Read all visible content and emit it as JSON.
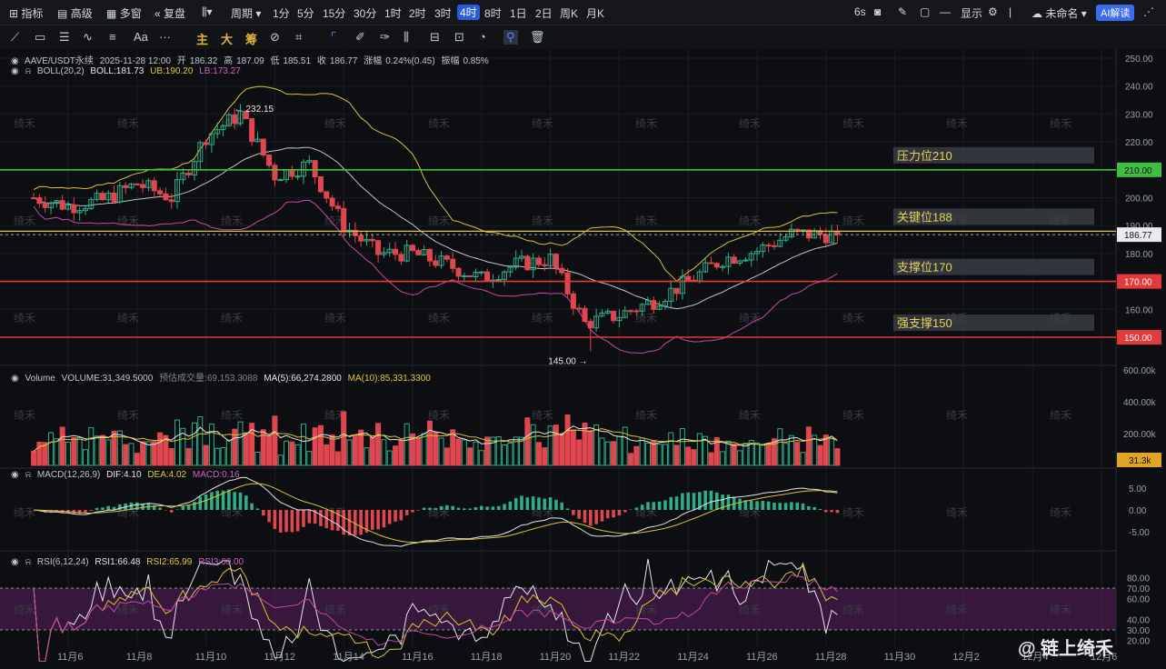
{
  "toolbar": {
    "items": [
      "指标",
      "高级",
      "多窗",
      "复盘",
      "周期",
      "1分",
      "5分",
      "15分",
      "30分",
      "1时",
      "2时",
      "3时",
      "4时",
      "8时",
      "1日",
      "2日",
      "周K",
      "月K"
    ],
    "active_index": 12,
    "right_items": [
      "6s",
      "显示",
      "未命名"
    ],
    "ai_button": "AI解读"
  },
  "drawbar": {
    "labels": [
      "主",
      "大",
      "筹"
    ],
    "text_tool": "Aa"
  },
  "main_legend": {
    "symbol": "AAVE/USDT永续",
    "datetime": "2025-11-28 12:00",
    "open_label": "开",
    "open": "186.32",
    "high_label": "高",
    "high": "187.09",
    "low_label": "低",
    "low": "185.51",
    "close_label": "收",
    "close": "186.77",
    "chg_label": "涨幅",
    "chg": "0.24%(0.45)",
    "amp_label": "振幅",
    "amp": "0.85%"
  },
  "boll_legend": {
    "name": "BOLL(20,2)",
    "mid": "BOLL:181.73",
    "ub": "UB:190.20",
    "lb": "LB:173.27"
  },
  "volume_legend": {
    "name": "Volume",
    "vol": "VOLUME:31,349.5000",
    "est": "预估成交量:69,153.3088",
    "ma5": "MA(5):66,274.2800",
    "ma10": "MA(10):85,331.3300"
  },
  "macd_legend": {
    "name": "MACD(12,26,9)",
    "dif": "DIF:4.10",
    "dea": "DEA:4.02",
    "macd": "MACD:0.16"
  },
  "rsi_legend": {
    "name": "RSI(6,12,24)",
    "rsi1": "RSI1:66.48",
    "rsi2": "RSI2:65.99",
    "rsi3": "RSI3:60.00"
  },
  "levels": [
    {
      "label": "压力位210",
      "value": 210,
      "color": "#3fbf3f"
    },
    {
      "label": "关键位188",
      "value": 188,
      "color": "#d9c234"
    },
    {
      "label": "支撑位170",
      "value": 170,
      "color": "#e23a3a"
    },
    {
      "label": "强支撑150",
      "value": 150,
      "color": "#e23a3a"
    }
  ],
  "price_axis": {
    "ticks": [
      "250.00",
      "240.00",
      "230.00",
      "220.00",
      "210.00",
      "200.00",
      "190.00",
      "180.00",
      "170.00",
      "160.00",
      "150.00"
    ],
    "current": "186.77",
    "badge_210": "210.00",
    "badge_170": "170.00",
    "badge_150": "150.00"
  },
  "volume_axis": {
    "ticks": [
      "600.00k",
      "400.00k",
      "200.00k"
    ],
    "current": "31.3k"
  },
  "macd_axis": {
    "ticks": [
      "5.00",
      "0.00",
      "-5.00"
    ]
  },
  "rsi_axis": {
    "ticks": [
      "80.00",
      "70.00",
      "60.00",
      "40.00",
      "30.00",
      "20.00"
    ]
  },
  "annotations": {
    "high": "232.15",
    "low": "145.00"
  },
  "watermark": "绮禾",
  "brand": "@ 链上绮禾",
  "chart_data": {
    "type": "candlestick",
    "price_ylim": [
      140,
      252
    ],
    "x_ticks": [
      "11月6",
      "11月8",
      "11月10",
      "11月12",
      "11月14",
      "11月16",
      "11月18",
      "11月20",
      "11月22",
      "11月24",
      "11月26",
      "11月28",
      "11月30",
      "12月2",
      "12月4",
      "12月6"
    ],
    "key_points": [
      {
        "date": "11月5",
        "close": 200
      },
      {
        "date": "11月6",
        "close": 197
      },
      {
        "date": "11月7",
        "close": 199
      },
      {
        "date": "11月8",
        "close": 205
      },
      {
        "date": "11月9",
        "close": 200
      },
      {
        "date": "11月10",
        "close": 222
      },
      {
        "date": "11月11",
        "close": 230
      },
      {
        "date": "11月12",
        "close": 208
      },
      {
        "date": "11月13",
        "close": 212
      },
      {
        "date": "11月14",
        "close": 190
      },
      {
        "date": "11月15",
        "close": 180
      },
      {
        "date": "11月16",
        "close": 180
      },
      {
        "date": "11月17",
        "close": 176
      },
      {
        "date": "11月18",
        "close": 171
      },
      {
        "date": "11月19",
        "close": 176
      },
      {
        "date": "11月20",
        "close": 178
      },
      {
        "date": "11月21",
        "close": 155
      },
      {
        "date": "11月22",
        "close": 158
      },
      {
        "date": "11月23",
        "close": 163
      },
      {
        "date": "11月24",
        "close": 170
      },
      {
        "date": "11月25",
        "close": 178
      },
      {
        "date": "11月26",
        "close": 181
      },
      {
        "date": "11月27",
        "close": 187
      },
      {
        "date": "11月28",
        "close": 186.77
      }
    ],
    "high": 232.15,
    "low": 145.0
  }
}
